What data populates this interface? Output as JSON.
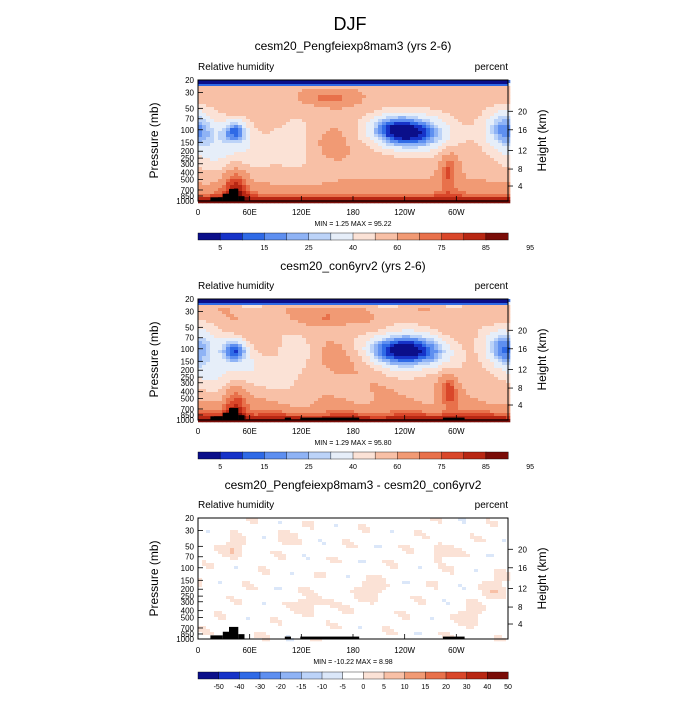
{
  "figure": {
    "title": "DJF"
  },
  "colors": {
    "rh_levels": [
      "#0b0f8a",
      "#1633c8",
      "#2f6ae6",
      "#5e8ff0",
      "#8fb3f5",
      "#bcd3f8",
      "#e6eef9",
      "#fbe2d6",
      "#f8c0a6",
      "#f19a74",
      "#e8714b",
      "#d9472a",
      "#b82713",
      "#7a0d08"
    ],
    "diff_levels": [
      "#0b0f8a",
      "#1633c8",
      "#2f6ae6",
      "#5e8ff0",
      "#8fb3f5",
      "#bcd3f8",
      "#dbe7f9",
      "#ffffff",
      "#fbe2d6",
      "#f8c0a6",
      "#f19a74",
      "#e8714b",
      "#d9472a",
      "#b82713",
      "#7a0d08"
    ]
  },
  "panels": [
    {
      "title": "cesm20_Pengfeiexp8mam3 (yrs 2-6)",
      "left_label": "Relative humidity",
      "right_label": "percent",
      "minmax": "MIN =   1.25  MAX =  95.22",
      "colorbar_labels": [
        "5",
        "15",
        "25",
        "40",
        "60",
        "75",
        "85",
        "95"
      ]
    },
    {
      "title": "cesm20_con6yrv2 (yrs 2-6)",
      "left_label": "Relative humidity",
      "right_label": "percent",
      "minmax": "MIN =   1.29  MAX =  95.80",
      "colorbar_labels": [
        "5",
        "15",
        "25",
        "40",
        "60",
        "75",
        "85",
        "95"
      ]
    },
    {
      "title": "cesm20_Pengfeiexp8mam3 - cesm20_con6yrv2",
      "left_label": "Relative humidity",
      "right_label": "percent",
      "minmax": "MIN = -10.22  MAX =   8.98",
      "colorbar_labels": [
        "-50",
        "-40",
        "-30",
        "-20",
        "-15",
        "-10",
        "-5",
        "0",
        "5",
        "10",
        "15",
        "20",
        "30",
        "40",
        "50"
      ]
    }
  ],
  "chart_data": {
    "type": "heatmap",
    "variable": "Relative humidity",
    "units": "percent",
    "season": "DJF",
    "ylabel": "Pressure (mb)",
    "ylabel_right": "Height (km)",
    "x_ticks": [
      "0",
      "60E",
      "120E",
      "180",
      "120W",
      "60W"
    ],
    "y_ticks": [
      "1000",
      "850",
      "700",
      "500",
      "400",
      "300",
      "250",
      "200",
      "150",
      "100",
      "70",
      "50",
      "30",
      "20"
    ],
    "y_ticks_right": [
      "20",
      "16",
      "12",
      "8",
      "4"
    ],
    "rh_levels": [
      5,
      10,
      15,
      20,
      25,
      30,
      40,
      50,
      60,
      70,
      75,
      80,
      85,
      90,
      95
    ],
    "diff_levels": [
      -50,
      -40,
      -30,
      -20,
      -15,
      -10,
      -5,
      0,
      5,
      10,
      15,
      20,
      30,
      40,
      50
    ],
    "panels": [
      {
        "name": "cesm20_Pengfeiexp8mam3 (yrs 2-6)",
        "min": 1.25,
        "max": 95.22
      },
      {
        "name": "cesm20_con6yrv2 (yrs 2-6)",
        "min": 1.29,
        "max": 95.8
      },
      {
        "name": "cesm20_Pengfeiexp8mam3 - cesm20_con6yrv2",
        "min": -10.22,
        "max": 8.98
      }
    ]
  }
}
